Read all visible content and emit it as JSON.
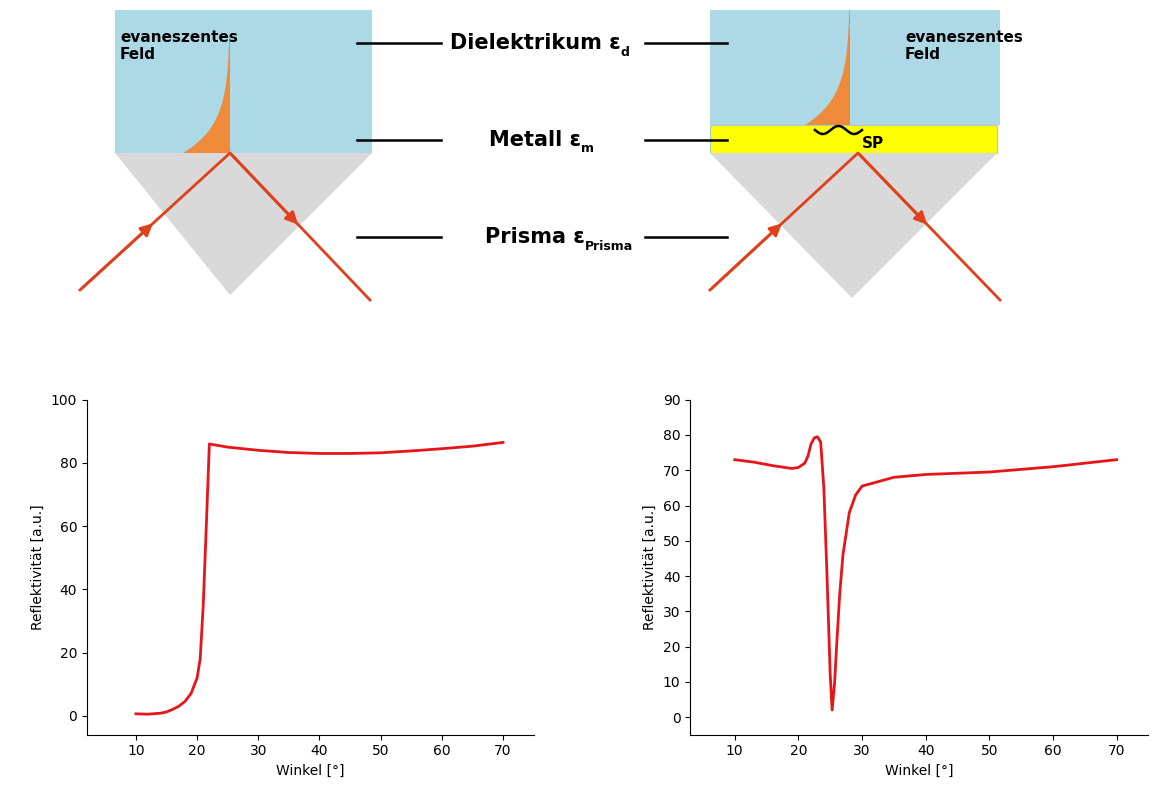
{
  "diagram": {
    "panels": [
      {
        "field_label": "evaneszentes\nFeld"
      },
      {
        "field_label": "evaneszentes\nFeld",
        "wave_label": "SP"
      }
    ],
    "layer_labels": [
      {
        "text": "Dielektrikum ε",
        "subscript": "d"
      },
      {
        "text": "Metall ε",
        "subscript": "m"
      },
      {
        "text": "Prisma ε",
        "subscript": "Prisma"
      }
    ]
  },
  "chart_data": [
    {
      "type": "line",
      "color": "#e8141a",
      "x": [
        10,
        12,
        14,
        15,
        16,
        17,
        18,
        19,
        20,
        20.5,
        21,
        21.5,
        22,
        25,
        30,
        35,
        40,
        45,
        50,
        55,
        60,
        65,
        70
      ],
      "values": [
        0.6,
        0.5,
        0.8,
        1.2,
        2,
        3,
        4.5,
        7,
        12,
        18,
        35,
        60,
        86,
        85,
        84,
        83.3,
        83,
        83,
        83.2,
        83.8,
        84.5,
        85.3,
        86.5
      ],
      "xlim": [
        2,
        75
      ],
      "xticks": [
        10,
        20,
        30,
        40,
        50,
        60,
        70
      ],
      "ylim": [
        -6,
        100
      ],
      "yticks": [
        0,
        20,
        40,
        60,
        80,
        100
      ],
      "x_label": "Winkel [°]",
      "y_label": "Reflektivität [a.u.]"
    },
    {
      "type": "line",
      "color": "#e8141a",
      "x": [
        10,
        13,
        16,
        19,
        20,
        21,
        21.5,
        22,
        22.5,
        23,
        23.5,
        24,
        24.5,
        25,
        25.3,
        25.7,
        26,
        26.5,
        27,
        28,
        29,
        30,
        35,
        40,
        50,
        60,
        70
      ],
      "values": [
        73,
        72.3,
        71.3,
        70.5,
        70.8,
        72,
        74,
        77.5,
        79.2,
        79.5,
        78,
        65,
        40,
        12,
        2,
        10,
        20,
        35,
        46,
        58,
        63,
        65.5,
        68,
        68.8,
        69.5,
        71,
        73
      ],
      "xlim": [
        3,
        75
      ],
      "xticks": [
        10,
        20,
        30,
        40,
        50,
        60,
        70
      ],
      "ylim": [
        -5,
        90
      ],
      "yticks": [
        0,
        10,
        20,
        30,
        40,
        50,
        60,
        70,
        80,
        90
      ],
      "x_label": "Winkel [°]",
      "y_label": "Reflektivität [a.u.]"
    }
  ]
}
